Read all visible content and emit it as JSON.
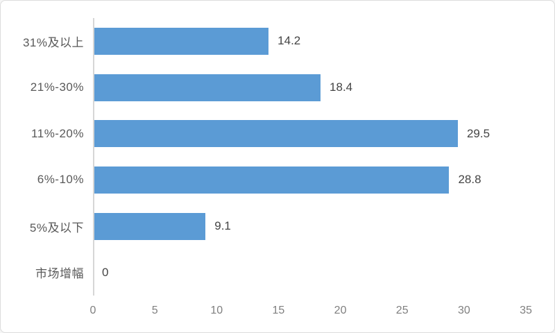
{
  "chart_data": {
    "type": "bar",
    "orientation": "horizontal",
    "title": "",
    "xlabel": "",
    "ylabel": "",
    "categories": [
      "31%及以上",
      "21%-30%",
      "11%-20%",
      "6%-10%",
      "5%及以下",
      "市场增幅"
    ],
    "values": [
      14.2,
      18.4,
      29.5,
      28.8,
      9.1,
      0
    ],
    "data_labels": [
      "14.2",
      "18.4",
      "29.5",
      "28.8",
      "9.1",
      "0"
    ],
    "xlim": [
      0,
      35
    ],
    "x_ticks": [
      "0",
      "5",
      "10",
      "15",
      "20",
      "25",
      "30",
      "35"
    ],
    "grid": false,
    "legend": false,
    "colors": {
      "bar": "#5B9BD5",
      "axis_line": "#D6D6D6",
      "category_label": "#595959",
      "value_label": "#444444",
      "tick_label": "#7F7F7F",
      "background": "#FFFFFF",
      "frame_border": "#DCDCDC"
    }
  }
}
